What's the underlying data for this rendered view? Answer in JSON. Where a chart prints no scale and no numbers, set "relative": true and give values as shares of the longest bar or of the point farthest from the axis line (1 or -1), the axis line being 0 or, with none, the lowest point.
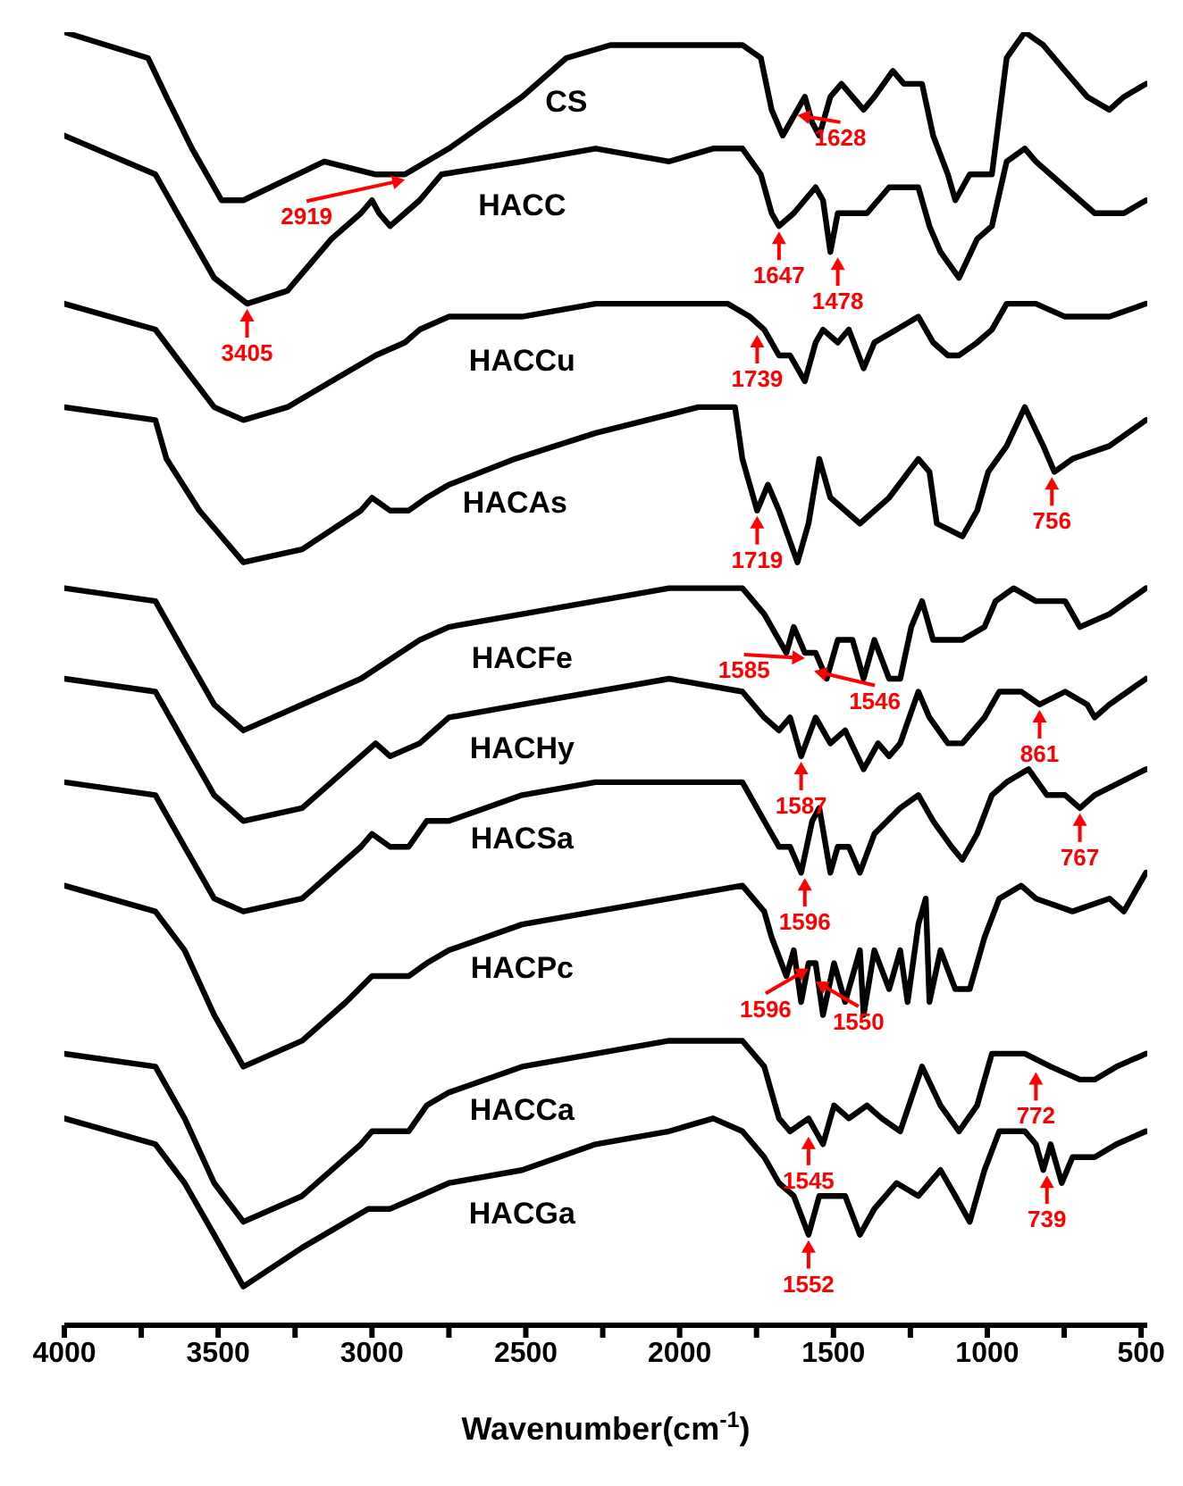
{
  "chart_data": {
    "type": "line",
    "relative": true,
    "xlabel": "Wavenumber(cm$^{-1}$)",
    "xlim": [
      4000,
      480
    ],
    "xticks": [
      4000,
      {
        "value": 3750,
        "label": null
      },
      3500,
      {
        "value": 3250,
        "label": null
      },
      3000,
      {
        "value": 2750,
        "label": null
      },
      2500,
      {
        "value": 2250,
        "label": null
      },
      2000,
      {
        "value": 1750,
        "label": null
      },
      1500,
      {
        "value": 1250,
        "label": null
      },
      1000,
      {
        "value": 750,
        "label": null
      },
      500
    ],
    "grid": false,
    "legend": false,
    "marker": "none",
    "line_style": "solid",
    "series": [
      {
        "name": "CS",
        "color": "#000000",
        "x": [
          4000,
          3728,
          3668,
          3585,
          3489,
          3418,
          3155,
          2988,
          2893,
          2750,
          2512,
          2368,
          2225,
          2034,
          1939,
          1796,
          1736,
          1701,
          1665,
          1617,
          1593,
          1569,
          1546,
          1510,
          1474,
          1438,
          1402,
          1367,
          1307,
          1271,
          1212,
          1176,
          1128,
          1104,
          1057,
          985,
          937,
          878,
          818,
          747,
          675,
          603,
          556,
          484
        ],
        "values": [
          1.0,
          0.98,
          0.95,
          0.91,
          0.87,
          0.87,
          0.9,
          0.89,
          0.89,
          0.91,
          0.95,
          0.98,
          0.99,
          0.99,
          0.99,
          0.99,
          0.98,
          0.94,
          0.92,
          0.94,
          0.95,
          0.93,
          0.92,
          0.95,
          0.96,
          0.95,
          0.94,
          0.95,
          0.97,
          0.96,
          0.96,
          0.92,
          0.89,
          0.87,
          0.89,
          0.89,
          0.98,
          1.0,
          0.99,
          0.97,
          0.95,
          0.94,
          0.95,
          0.96
        ]
      },
      {
        "name": "HACC",
        "color": "#000000",
        "x": [
          4000,
          3704,
          3609,
          3513,
          3406,
          3275,
          3132,
          3036,
          3000,
          2977,
          2941,
          2893,
          2845,
          2774,
          2512,
          2273,
          2034,
          1891,
          1796,
          1736,
          1701,
          1677,
          1629,
          1558,
          1534,
          1510,
          1486,
          1438,
          1391,
          1319,
          1224,
          1188,
          1152,
          1092,
          1033,
          985,
          937,
          878,
          842,
          747,
          651,
          556,
          484
        ],
        "values": [
          0.92,
          0.89,
          0.85,
          0.81,
          0.79,
          0.8,
          0.84,
          0.86,
          0.87,
          0.86,
          0.85,
          0.86,
          0.87,
          0.89,
          0.9,
          0.91,
          0.9,
          0.91,
          0.91,
          0.89,
          0.86,
          0.85,
          0.86,
          0.88,
          0.87,
          0.83,
          0.86,
          0.86,
          0.86,
          0.88,
          0.88,
          0.85,
          0.83,
          0.81,
          0.84,
          0.85,
          0.9,
          0.91,
          0.9,
          0.88,
          0.86,
          0.86,
          0.87
        ]
      },
      {
        "name": "HACCu",
        "color": "#000000",
        "x": [
          4000,
          3704,
          3609,
          3513,
          3418,
          3275,
          3132,
          2988,
          2893,
          2845,
          2750,
          2512,
          2273,
          2034,
          1844,
          1772,
          1725,
          1677,
          1641,
          1593,
          1558,
          1534,
          1486,
          1450,
          1402,
          1367,
          1295,
          1224,
          1176,
          1128,
          1092,
          1033,
          985,
          937,
          890,
          842,
          747,
          603,
          484
        ],
        "values": [
          0.79,
          0.77,
          0.74,
          0.71,
          0.7,
          0.71,
          0.73,
          0.75,
          0.76,
          0.77,
          0.78,
          0.78,
          0.79,
          0.79,
          0.79,
          0.78,
          0.77,
          0.75,
          0.75,
          0.73,
          0.76,
          0.77,
          0.76,
          0.77,
          0.74,
          0.76,
          0.77,
          0.78,
          0.76,
          0.75,
          0.75,
          0.76,
          0.77,
          0.79,
          0.79,
          0.79,
          0.78,
          0.78,
          0.79
        ]
      },
      {
        "name": "HACAs",
        "color": "#000000",
        "x": [
          4000,
          3704,
          3668,
          3561,
          3418,
          3227,
          3036,
          3000,
          2941,
          2881,
          2822,
          2750,
          2535,
          2273,
          1939,
          1820,
          1796,
          1748,
          1713,
          1677,
          1617,
          1581,
          1546,
          1510,
          1462,
          1414,
          1319,
          1224,
          1188,
          1164,
          1081,
          1033,
          997,
          937,
          878,
          818,
          782,
          723,
          603,
          484
        ],
        "values": [
          0.71,
          0.7,
          0.67,
          0.63,
          0.59,
          0.6,
          0.63,
          0.64,
          0.63,
          0.63,
          0.64,
          0.65,
          0.67,
          0.69,
          0.71,
          0.71,
          0.67,
          0.63,
          0.65,
          0.63,
          0.59,
          0.62,
          0.67,
          0.64,
          0.63,
          0.62,
          0.64,
          0.67,
          0.66,
          0.62,
          0.61,
          0.63,
          0.66,
          0.68,
          0.71,
          0.68,
          0.66,
          0.67,
          0.68,
          0.7
        ]
      },
      {
        "name": "HACFe",
        "color": "#000000",
        "x": [
          4000,
          3704,
          3609,
          3513,
          3418,
          3227,
          3036,
          2845,
          2750,
          2512,
          2273,
          2034,
          1796,
          1725,
          1677,
          1653,
          1629,
          1593,
          1558,
          1522,
          1486,
          1438,
          1402,
          1367,
          1319,
          1283,
          1247,
          1212,
          1176,
          1128,
          1081,
          1009,
          973,
          914,
          842,
          747,
          699,
          603,
          484
        ],
        "values": [
          0.57,
          0.56,
          0.52,
          0.48,
          0.46,
          0.48,
          0.5,
          0.53,
          0.54,
          0.55,
          0.56,
          0.57,
          0.57,
          0.55,
          0.53,
          0.52,
          0.54,
          0.52,
          0.52,
          0.5,
          0.53,
          0.53,
          0.5,
          0.53,
          0.5,
          0.5,
          0.54,
          0.56,
          0.53,
          0.53,
          0.53,
          0.54,
          0.56,
          0.57,
          0.56,
          0.56,
          0.54,
          0.55,
          0.57
        ]
      },
      {
        "name": "HACHy",
        "color": "#000000",
        "x": [
          4000,
          3704,
          3609,
          3513,
          3418,
          3227,
          3036,
          2988,
          2941,
          2845,
          2750,
          2512,
          2273,
          2034,
          1796,
          1725,
          1677,
          1641,
          1605,
          1558,
          1510,
          1462,
          1402,
          1355,
          1319,
          1283,
          1224,
          1188,
          1128,
          1081,
          1009,
          961,
          890,
          830,
          747,
          675,
          651,
          603,
          484
        ],
        "values": [
          0.5,
          0.49,
          0.45,
          0.41,
          0.39,
          0.4,
          0.44,
          0.45,
          0.44,
          0.45,
          0.47,
          0.48,
          0.49,
          0.5,
          0.49,
          0.47,
          0.46,
          0.47,
          0.44,
          0.47,
          0.45,
          0.46,
          0.43,
          0.45,
          0.44,
          0.45,
          0.49,
          0.47,
          0.45,
          0.45,
          0.47,
          0.49,
          0.49,
          0.48,
          0.49,
          0.48,
          0.47,
          0.48,
          0.5
        ]
      },
      {
        "name": "HACSa",
        "color": "#000000",
        "x": [
          4000,
          3704,
          3609,
          3513,
          3418,
          3227,
          3036,
          3000,
          2941,
          2881,
          2822,
          2750,
          2512,
          2273,
          2034,
          1796,
          1725,
          1677,
          1641,
          1605,
          1569,
          1546,
          1510,
          1486,
          1450,
          1414,
          1367,
          1283,
          1224,
          1176,
          1116,
          1081,
          1033,
          985,
          937,
          866,
          806,
          747,
          699,
          651,
          484
        ],
        "values": [
          0.42,
          0.41,
          0.37,
          0.33,
          0.32,
          0.33,
          0.37,
          0.38,
          0.37,
          0.37,
          0.39,
          0.39,
          0.41,
          0.42,
          0.42,
          0.42,
          0.39,
          0.37,
          0.37,
          0.35,
          0.39,
          0.4,
          0.35,
          0.37,
          0.37,
          0.35,
          0.38,
          0.4,
          0.41,
          0.39,
          0.37,
          0.36,
          0.38,
          0.41,
          0.42,
          0.43,
          0.41,
          0.41,
          0.4,
          0.41,
          0.43
        ]
      },
      {
        "name": "HACPc",
        "color": "#000000",
        "x": [
          4000,
          3704,
          3609,
          3513,
          3418,
          3227,
          3084,
          3000,
          2941,
          2881,
          2822,
          2750,
          2512,
          2273,
          2034,
          1796,
          1725,
          1701,
          1653,
          1629,
          1605,
          1581,
          1558,
          1534,
          1498,
          1462,
          1414,
          1402,
          1367,
          1319,
          1283,
          1259,
          1224,
          1200,
          1188,
          1152,
          1104,
          1057,
          1009,
          961,
          890,
          842,
          723,
          603,
          556,
          484
        ],
        "values": [
          0.34,
          0.32,
          0.29,
          0.24,
          0.2,
          0.22,
          0.25,
          0.27,
          0.27,
          0.27,
          0.28,
          0.29,
          0.31,
          0.32,
          0.33,
          0.34,
          0.32,
          0.3,
          0.27,
          0.29,
          0.25,
          0.28,
          0.28,
          0.24,
          0.28,
          0.25,
          0.29,
          0.24,
          0.29,
          0.26,
          0.29,
          0.25,
          0.31,
          0.33,
          0.25,
          0.29,
          0.26,
          0.26,
          0.3,
          0.33,
          0.34,
          0.33,
          0.32,
          0.33,
          0.32,
          0.35
        ]
      },
      {
        "name": "HACCa",
        "color": "#000000",
        "x": [
          4000,
          3704,
          3609,
          3513,
          3418,
          3227,
          3036,
          3000,
          2941,
          2881,
          2822,
          2750,
          2512,
          2273,
          2034,
          1796,
          1725,
          1677,
          1641,
          1581,
          1534,
          1498,
          1450,
          1391,
          1343,
          1283,
          1212,
          1152,
          1092,
          1033,
          985,
          937,
          878,
          794,
          699,
          651,
          580,
          484
        ],
        "values": [
          0.21,
          0.2,
          0.16,
          0.11,
          0.08,
          0.1,
          0.14,
          0.15,
          0.15,
          0.15,
          0.17,
          0.18,
          0.2,
          0.21,
          0.22,
          0.22,
          0.2,
          0.16,
          0.15,
          0.16,
          0.14,
          0.17,
          0.16,
          0.17,
          0.16,
          0.15,
          0.2,
          0.17,
          0.15,
          0.17,
          0.21,
          0.21,
          0.21,
          0.2,
          0.19,
          0.19,
          0.2,
          0.21
        ]
      },
      {
        "name": "HACGa",
        "color": "#000000",
        "x": [
          4000,
          3704,
          3609,
          3513,
          3418,
          3227,
          3012,
          2941,
          2845,
          2750,
          2512,
          2273,
          2034,
          1891,
          1796,
          1725,
          1677,
          1629,
          1581,
          1546,
          1510,
          1462,
          1414,
          1367,
          1295,
          1224,
          1152,
          1104,
          1057,
          1009,
          961,
          878,
          842,
          818,
          794,
          758,
          723,
          651,
          580,
          484
        ],
        "values": [
          0.16,
          0.14,
          0.11,
          0.07,
          0.03,
          0.06,
          0.09,
          0.09,
          0.1,
          0.11,
          0.12,
          0.14,
          0.15,
          0.16,
          0.15,
          0.13,
          0.11,
          0.1,
          0.07,
          0.1,
          0.1,
          0.1,
          0.07,
          0.09,
          0.11,
          0.1,
          0.12,
          0.1,
          0.08,
          0.12,
          0.15,
          0.15,
          0.14,
          0.12,
          0.14,
          0.11,
          0.13,
          0.13,
          0.14,
          0.15
        ]
      }
    ],
    "annotations": [
      {
        "text": "3405",
        "x": 3406,
        "y": 0.79
      },
      {
        "text": "2919",
        "x": 2893,
        "y": 0.89
      },
      {
        "text": "1628",
        "x": 1617,
        "y": 0.94
      },
      {
        "text": "1647",
        "x": 1677,
        "y": 0.85
      },
      {
        "text": "1478",
        "x": 1486,
        "y": 0.83
      },
      {
        "text": "1739",
        "x": 1748,
        "y": 0.77
      },
      {
        "text": "1719",
        "x": 1748,
        "y": 0.63
      },
      {
        "text": "756",
        "x": 790,
        "y": 0.66
      },
      {
        "text": "1585",
        "x": 1593,
        "y": 0.52
      },
      {
        "text": "1546",
        "x": 1563,
        "y": 0.51
      },
      {
        "text": "861",
        "x": 830,
        "y": 0.48
      },
      {
        "text": "1587",
        "x": 1605,
        "y": 0.44
      },
      {
        "text": "767",
        "x": 699,
        "y": 0.4
      },
      {
        "text": "1596",
        "x": 1593,
        "y": 0.35
      },
      {
        "text": "1596",
        "x": 1581,
        "y": 0.28
      },
      {
        "text": "1550",
        "x": 1558,
        "y": 0.27
      },
      {
        "text": "772",
        "x": 842,
        "y": 0.2
      },
      {
        "text": "1545",
        "x": 1581,
        "y": 0.15
      },
      {
        "text": "1552",
        "x": 1581,
        "y": 0.07
      },
      {
        "text": "739",
        "x": 806,
        "y": 0.12
      }
    ]
  }
}
